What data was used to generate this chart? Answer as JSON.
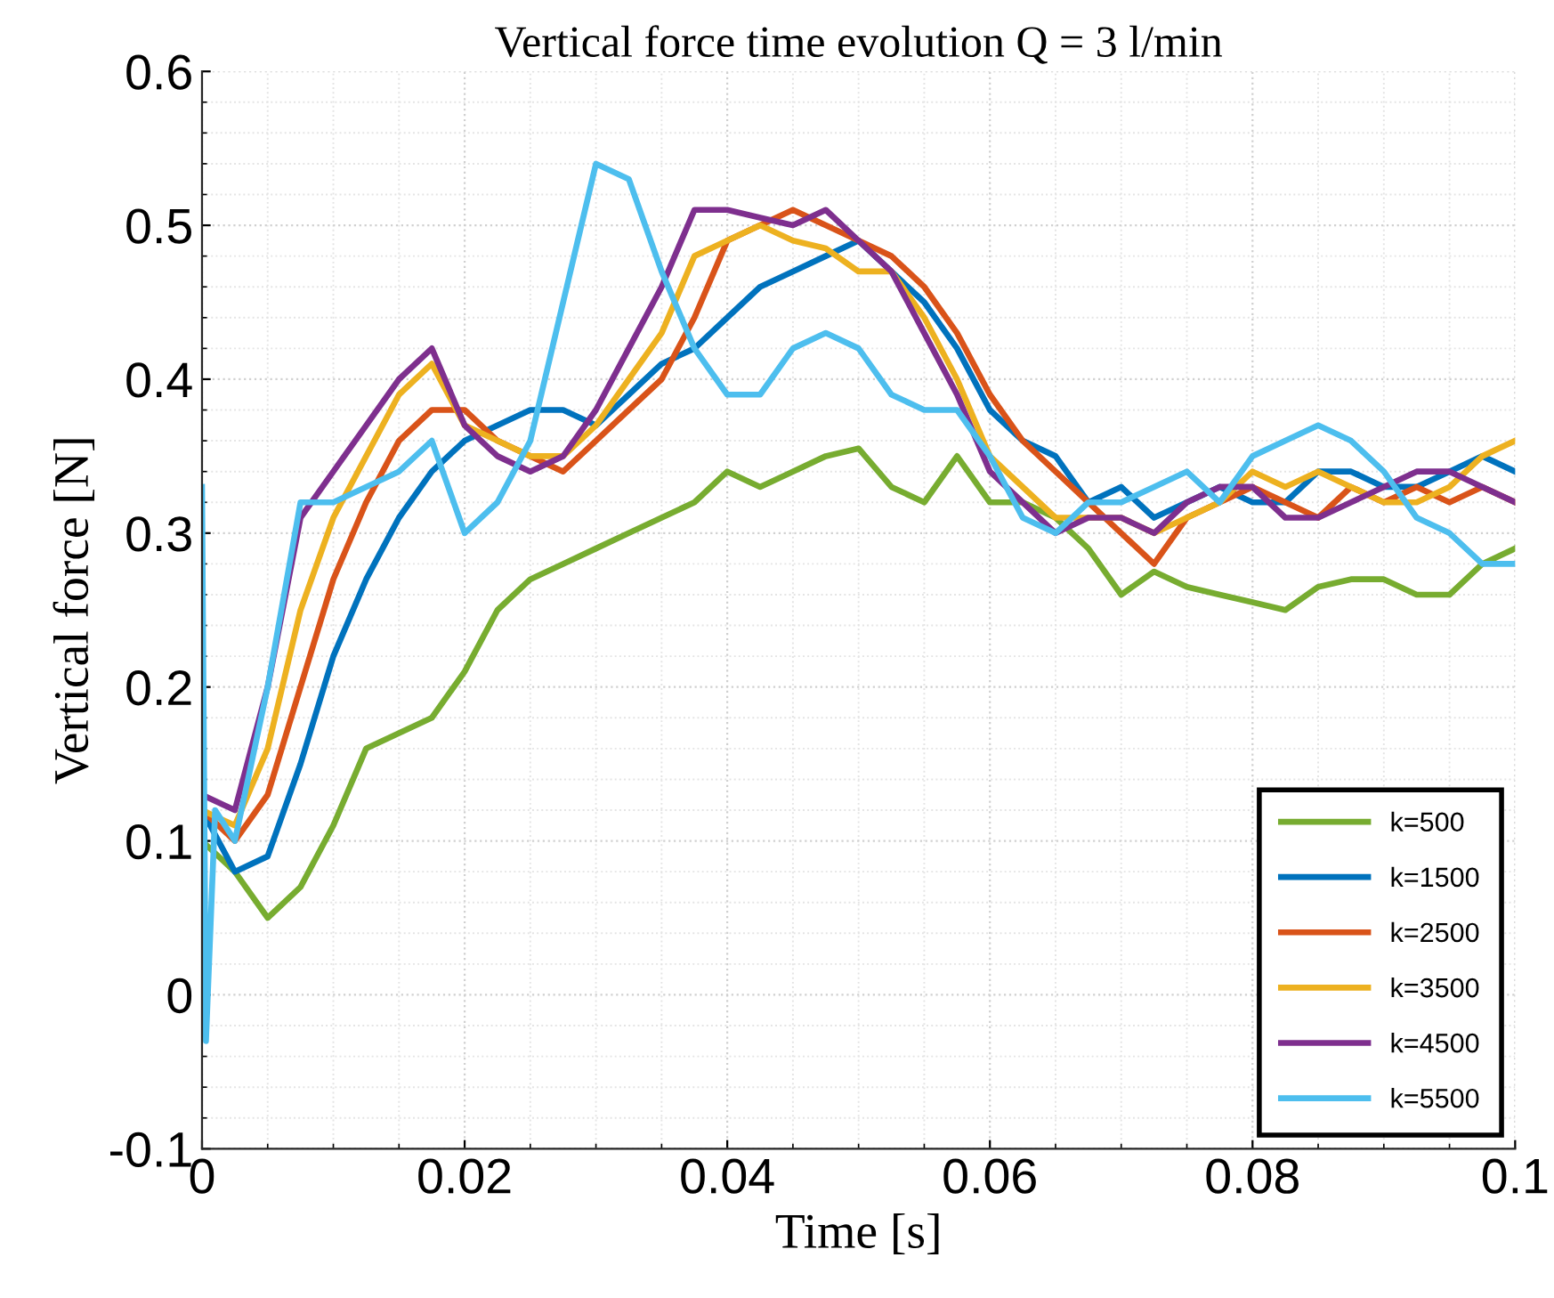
{
  "chart_data": {
    "type": "line",
    "title": "Vertical force time evolution Q = 3 l/min",
    "xlabel": "Time [s]",
    "ylabel": "Vertical force [N]",
    "x": [
      0,
      0.0025,
      0.005,
      0.0075,
      0.01,
      0.0125,
      0.015,
      0.0175,
      0.02,
      0.0225,
      0.025,
      0.0275,
      0.03,
      0.0325,
      0.035,
      0.0375,
      0.04,
      0.0425,
      0.045,
      0.0475,
      0.05,
      0.0525,
      0.055,
      0.0575,
      0.06,
      0.0625,
      0.065,
      0.0675,
      0.07,
      0.0725,
      0.075,
      0.0775,
      0.08,
      0.0825,
      0.085,
      0.0875,
      0.09,
      0.0925,
      0.095,
      0.0975,
      0.1
    ],
    "series": [
      {
        "name": "k=500",
        "color": "#77ac30",
        "values": [
          0.1,
          0.08,
          0.05,
          0.07,
          0.11,
          0.16,
          0.17,
          0.18,
          0.21,
          0.25,
          0.27,
          0.28,
          0.29,
          0.3,
          0.31,
          0.32,
          0.34,
          0.33,
          0.34,
          0.35,
          0.355,
          0.33,
          0.32,
          0.35,
          0.32,
          0.32,
          0.31,
          0.29,
          0.26,
          0.275,
          0.265,
          0.26,
          0.255,
          0.25,
          0.265,
          0.27,
          0.27,
          0.26,
          0.26,
          0.28,
          0.29
        ]
      },
      {
        "name": "k=1500",
        "color": "#0072bd",
        "values": [
          0.12,
          0.08,
          0.09,
          0.15,
          0.22,
          0.27,
          0.31,
          0.34,
          0.36,
          0.37,
          0.38,
          0.38,
          0.37,
          0.39,
          0.41,
          0.42,
          0.44,
          0.46,
          0.47,
          0.48,
          0.49,
          0.47,
          0.45,
          0.42,
          0.38,
          0.36,
          0.35,
          0.32,
          0.33,
          0.31,
          0.32,
          0.33,
          0.32,
          0.32,
          0.34,
          0.34,
          0.33,
          0.33,
          0.34,
          0.35,
          0.34
        ]
      },
      {
        "name": "k=2500",
        "color": "#d95319",
        "values": [
          0.12,
          0.1,
          0.13,
          0.2,
          0.27,
          0.32,
          0.36,
          0.38,
          0.38,
          0.36,
          0.35,
          0.34,
          0.36,
          0.38,
          0.4,
          0.44,
          0.49,
          0.5,
          0.51,
          0.5,
          0.49,
          0.48,
          0.46,
          0.43,
          0.39,
          0.36,
          0.34,
          0.32,
          0.3,
          0.28,
          0.31,
          0.32,
          0.33,
          0.32,
          0.31,
          0.33,
          0.32,
          0.33,
          0.32,
          0.33,
          0.32
        ]
      },
      {
        "name": "k=3500",
        "color": "#edb120",
        "values": [
          0.12,
          0.11,
          0.16,
          0.25,
          0.31,
          0.35,
          0.39,
          0.41,
          0.37,
          0.36,
          0.35,
          0.35,
          0.37,
          0.4,
          0.43,
          0.48,
          0.49,
          0.5,
          0.49,
          0.485,
          0.47,
          0.47,
          0.44,
          0.4,
          0.35,
          0.33,
          0.31,
          0.31,
          0.31,
          0.3,
          0.31,
          0.32,
          0.34,
          0.33,
          0.34,
          0.33,
          0.32,
          0.32,
          0.33,
          0.35,
          0.36
        ]
      },
      {
        "name": "k=4500",
        "color": "#7e2f8e",
        "values": [
          0.13,
          0.12,
          0.2,
          0.31,
          0.34,
          0.37,
          0.4,
          0.42,
          0.37,
          0.35,
          0.34,
          0.35,
          0.38,
          0.42,
          0.46,
          0.51,
          0.51,
          0.505,
          0.5,
          0.51,
          0.49,
          0.47,
          0.43,
          0.39,
          0.34,
          0.32,
          0.3,
          0.31,
          0.31,
          0.3,
          0.32,
          0.33,
          0.33,
          0.31,
          0.31,
          0.32,
          0.33,
          0.34,
          0.34,
          0.33,
          0.32
        ]
      },
      {
        "name": "k=5500",
        "color": "#4dbeee",
        "x": [
          0,
          0.0003,
          0.001,
          0.0025,
          0.005,
          0.0075,
          0.01,
          0.0125,
          0.015,
          0.0175,
          0.02,
          0.0225,
          0.025,
          0.0275,
          0.03,
          0.0325,
          0.035,
          0.0375,
          0.04,
          0.0425,
          0.045,
          0.0475,
          0.05,
          0.0525,
          0.055,
          0.0575,
          0.06,
          0.0625,
          0.065,
          0.0675,
          0.07,
          0.0725,
          0.075,
          0.0775,
          0.08,
          0.0825,
          0.085,
          0.0875,
          0.09,
          0.0925,
          0.095,
          0.0975,
          0.1
        ],
        "values": [
          0.33,
          -0.03,
          0.12,
          0.1,
          0.2,
          0.32,
          0.32,
          0.33,
          0.34,
          0.36,
          0.3,
          0.32,
          0.36,
          0.45,
          0.54,
          0.53,
          0.47,
          0.42,
          0.39,
          0.39,
          0.42,
          0.43,
          0.42,
          0.39,
          0.38,
          0.38,
          0.35,
          0.31,
          0.3,
          0.32,
          0.32,
          0.33,
          0.34,
          0.32,
          0.35,
          0.36,
          0.37,
          0.36,
          0.34,
          0.31,
          0.3,
          0.28,
          0.28
        ]
      }
    ],
    "xlim": [
      0,
      0.1
    ],
    "xticks": [
      {
        "value": 0,
        "label": "0"
      },
      {
        "value": 0.02,
        "label": "0.02"
      },
      {
        "value": 0.04,
        "label": "0.04"
      },
      {
        "value": 0.06,
        "label": "0.06"
      },
      {
        "value": 0.08,
        "label": "0.08"
      },
      {
        "value": 0.1,
        "label": "0.1"
      }
    ],
    "ylim": [
      -0.1,
      0.6
    ],
    "yticks": [
      {
        "value": -0.1,
        "label": "-0.1"
      },
      {
        "value": 0,
        "label": "0"
      },
      {
        "value": 0.1,
        "label": "0.1"
      },
      {
        "value": 0.2,
        "label": "0.2"
      },
      {
        "value": 0.3,
        "label": "0.3"
      },
      {
        "value": 0.4,
        "label": "0.4"
      },
      {
        "value": 0.5,
        "label": "0.5"
      },
      {
        "value": 0.6,
        "label": "0.6"
      }
    ],
    "grid": true,
    "legend": "bottom right",
    "marker": "none",
    "line_style": "solid"
  }
}
